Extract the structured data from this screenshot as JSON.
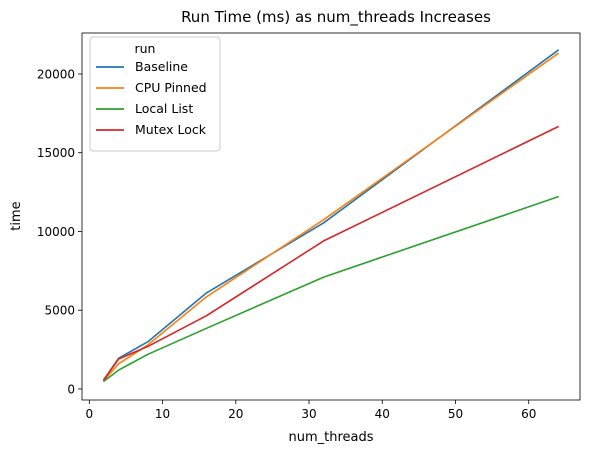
{
  "chart_data": {
    "type": "line",
    "title": "Run Time (ms) as num_threads Increases",
    "xlabel": "num_threads",
    "ylabel": "time",
    "xlim": [
      -1,
      67
    ],
    "ylim": [
      -700,
      22600
    ],
    "xticks": [
      0,
      10,
      20,
      30,
      40,
      50,
      60
    ],
    "yticks": [
      0,
      5000,
      10000,
      15000,
      20000
    ],
    "grid": false,
    "legend": {
      "title": "run",
      "placement": "top-left"
    },
    "x": [
      2,
      4,
      8,
      16,
      32,
      64
    ],
    "series": [
      {
        "name": "Baseline",
        "color": "#1f77b4",
        "values": [
          600,
          1950,
          3000,
          6100,
          10550,
          21500
        ]
      },
      {
        "name": "CPU Pinned",
        "color": "#ff7f0e",
        "values": [
          550,
          1600,
          2800,
          5850,
          10750,
          21300
        ]
      },
      {
        "name": "Local List",
        "color": "#2ca02c",
        "values": [
          500,
          1200,
          2200,
          3850,
          7100,
          12200
        ]
      },
      {
        "name": "Mutex Lock",
        "color": "#d62728",
        "values": [
          600,
          1900,
          2700,
          4650,
          9400,
          16650
        ]
      }
    ]
  }
}
